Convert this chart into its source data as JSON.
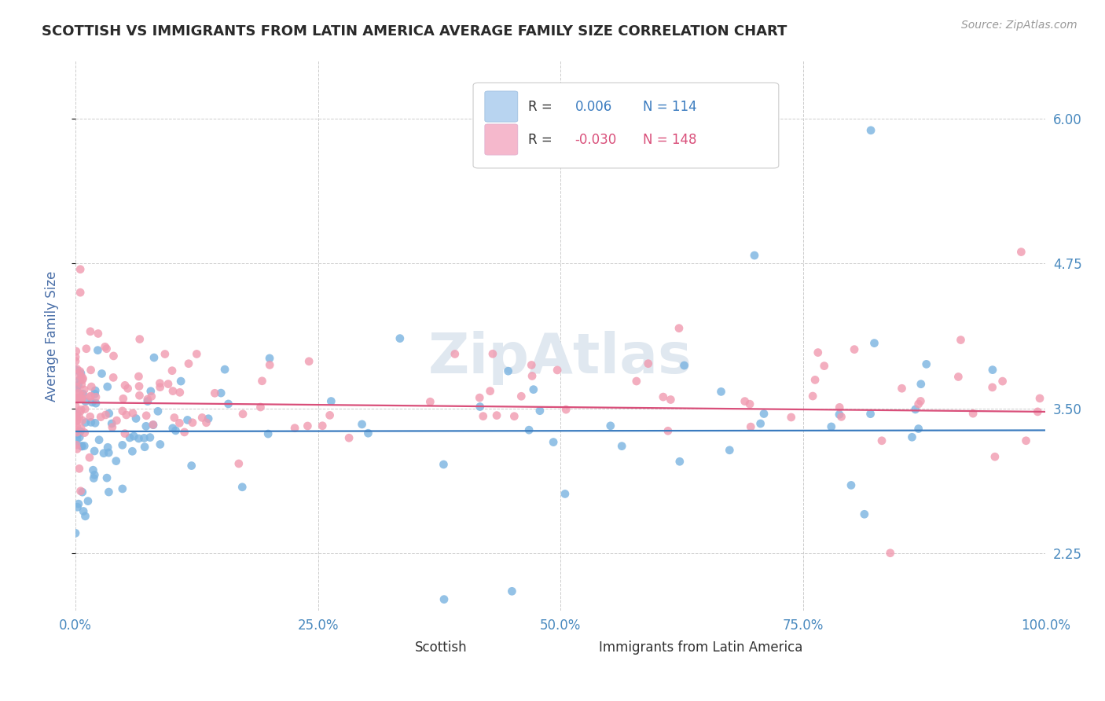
{
  "title": "SCOTTISH VS IMMIGRANTS FROM LATIN AMERICA AVERAGE FAMILY SIZE CORRELATION CHART",
  "source_text": "Source: ZipAtlas.com",
  "ylabel": "Average Family Size",
  "yticks": [
    2.25,
    3.5,
    4.75,
    6.0
  ],
  "xlim": [
    0.0,
    1.0
  ],
  "ylim": [
    1.75,
    6.5
  ],
  "legend_entries": [
    {
      "label": "Scottish",
      "R": 0.006,
      "N": 114,
      "color": "#b8d4f0",
      "line_color": "#3a7bbf"
    },
    {
      "label": "Immigrants from Latin America",
      "R": -0.03,
      "N": 148,
      "color": "#f5b8cc",
      "line_color": "#d94f7a"
    }
  ],
  "scatter_color_scottish": "#7ab3e0",
  "scatter_color_latin": "#f09ab0",
  "grid_color": "#cccccc",
  "background_color": "#ffffff",
  "title_color": "#2a2a2a",
  "axis_label_color": "#4a6fa8",
  "tick_label_color": "#4a8abf",
  "watermark_text": "ZipAtlas",
  "watermark_color": "#e0e8f0"
}
